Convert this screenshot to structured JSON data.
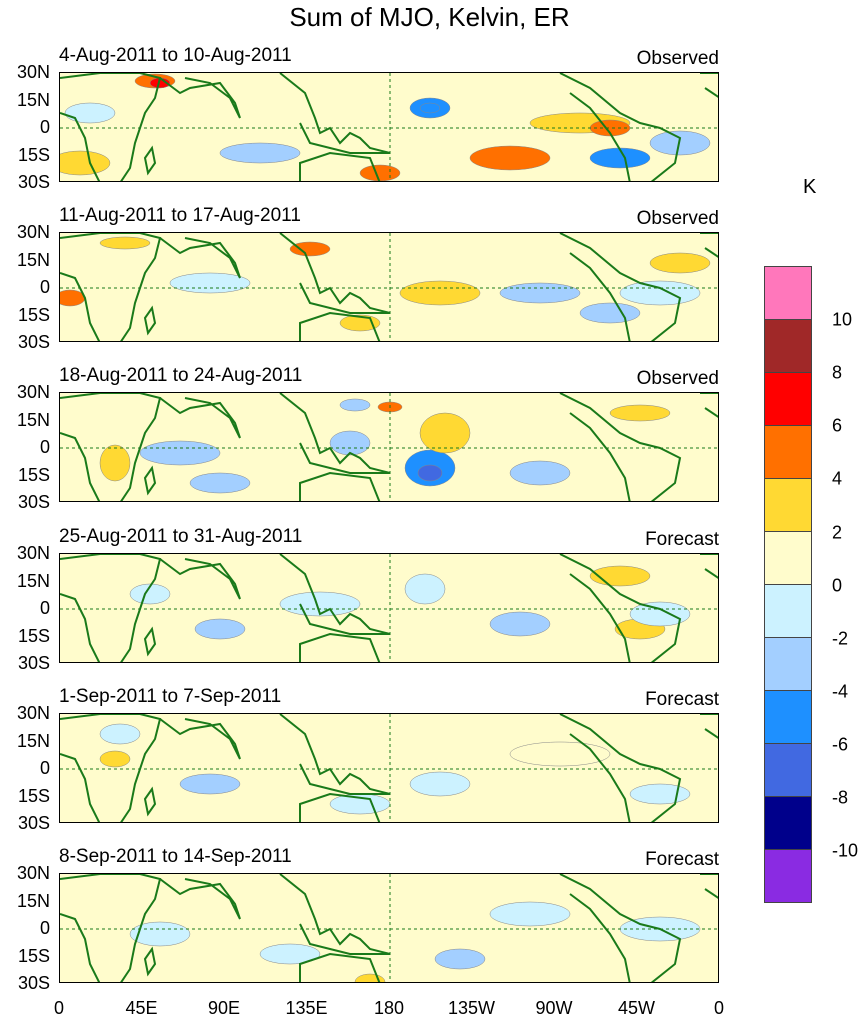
{
  "title": "Sum of MJO, Kelvin, ER",
  "unit": "K",
  "lat_labels": [
    "30N",
    "15N",
    "0",
    "15S",
    "30S"
  ],
  "lon_labels": [
    "0",
    "45E",
    "90E",
    "135E",
    "180",
    "135W",
    "90W",
    "45W",
    "0"
  ],
  "panels": [
    {
      "date_range": "4-Aug-2011 to 10-Aug-2011",
      "type": "Observed"
    },
    {
      "date_range": "11-Aug-2011 to 17-Aug-2011",
      "type": "Observed"
    },
    {
      "date_range": "18-Aug-2011 to 24-Aug-2011",
      "type": "Observed"
    },
    {
      "date_range": "25-Aug-2011 to 31-Aug-2011",
      "type": "Forecast"
    },
    {
      "date_range": "1-Sep-2011 to 7-Sep-2011",
      "type": "Forecast"
    },
    {
      "date_range": "8-Sep-2011 to 14-Sep-2011",
      "type": "Forecast"
    }
  ],
  "colorbar": {
    "levels": [
      "10",
      "8",
      "6",
      "4",
      "2",
      "0",
      "-2",
      "-4",
      "-6",
      "-8",
      "-10"
    ],
    "colors": [
      "#ff77bb",
      "#a02828",
      "#ff0000",
      "#ff7000",
      "#ffd933",
      "#fffccc",
      "#ccf2ff",
      "#a3cfff",
      "#1e90ff",
      "#4169e1",
      "#00008b",
      "#8a2be2"
    ]
  },
  "colors": {
    "coast": "#1a7a1a",
    "background": "#fffccc"
  }
}
